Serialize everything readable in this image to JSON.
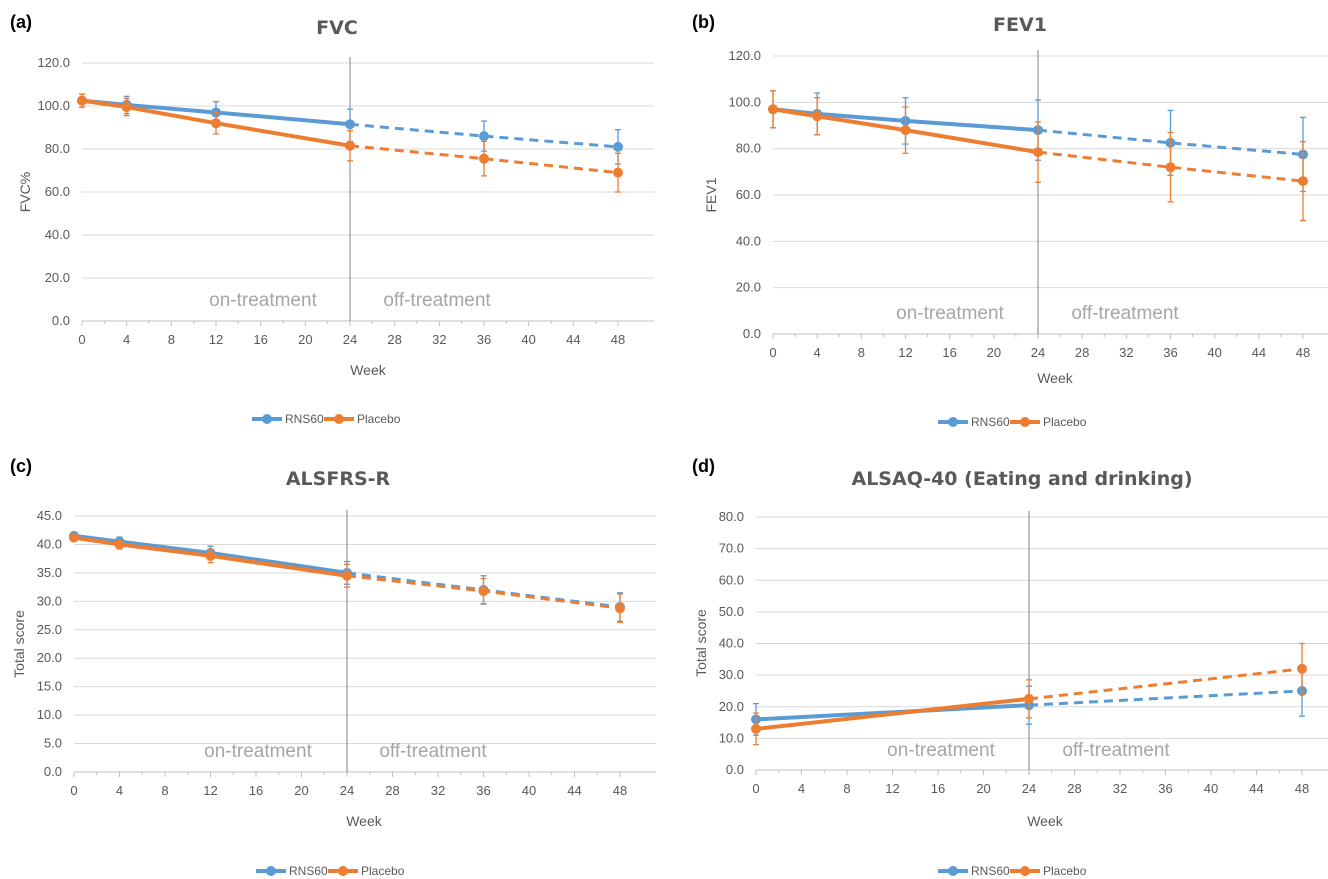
{
  "colors": {
    "rns60": "#5b9bd5",
    "placebo": "#ed7d31",
    "grid": "#d9d9d9",
    "axis": "#bfbfbf",
    "divider": "#808080",
    "text": "#595959",
    "phase_text": "#a6a6a6"
  },
  "phase_labels": {
    "on": "on-treatment",
    "off": "off-treatment"
  },
  "chart_data": [
    {
      "panel": "(a)",
      "type": "line",
      "title": "FVC",
      "xlabel": "Week",
      "ylabel": "FVC%",
      "xlim": [
        0,
        48
      ],
      "xticks": [
        "0",
        "4",
        "8",
        "12",
        "16",
        "20",
        "24",
        "28",
        "32",
        "36",
        "40",
        "44",
        "48"
      ],
      "ylim": [
        0,
        120
      ],
      "yticks": [
        "0.0",
        "20.0",
        "40.0",
        "60.0",
        "80.0",
        "100.0",
        "120.0"
      ],
      "grid": true,
      "divider_x": 24,
      "legend": "bottom-center",
      "series": [
        {
          "name": "RNS60",
          "x": [
            0,
            4,
            12,
            24,
            36,
            48
          ],
          "y": [
            102.5,
            100.5,
            97,
            91.5,
            86,
            81
          ],
          "err_low": [
            3,
            4,
            5,
            8,
            7,
            8
          ],
          "err_high": [
            3,
            4,
            5,
            7,
            7,
            8
          ]
        },
        {
          "name": "Placebo",
          "x": [
            0,
            4,
            12,
            24,
            36,
            48
          ],
          "y": [
            102.5,
            99.5,
            92,
            81.5,
            75.5,
            69
          ],
          "err_low": [
            3,
            4,
            5,
            7,
            8,
            9
          ],
          "err_high": [
            3,
            4,
            5,
            7,
            8,
            9
          ]
        }
      ]
    },
    {
      "panel": "(b)",
      "type": "line",
      "title": "FEV1",
      "xlabel": "Week",
      "ylabel": "FEV1",
      "xlim": [
        0,
        48
      ],
      "xticks": [
        "0",
        "4",
        "8",
        "12",
        "16",
        "20",
        "24",
        "28",
        "32",
        "36",
        "40",
        "44",
        "48"
      ],
      "ylim": [
        0,
        120
      ],
      "yticks": [
        "0.0",
        "20.0",
        "40.0",
        "60.0",
        "80.0",
        "100.0",
        "120.0"
      ],
      "grid": true,
      "divider_x": 24,
      "legend": "bottom-center",
      "series": [
        {
          "name": "RNS60",
          "x": [
            0,
            4,
            12,
            24,
            36,
            48
          ],
          "y": [
            97,
            95,
            92,
            88,
            82.5,
            77.5
          ],
          "err_low": [
            8,
            9,
            10,
            13,
            14,
            16
          ],
          "err_high": [
            8,
            9,
            10,
            13,
            14,
            16
          ]
        },
        {
          "name": "Placebo",
          "x": [
            0,
            4,
            12,
            24,
            36,
            48
          ],
          "y": [
            97,
            94,
            88,
            78.5,
            72,
            66
          ],
          "err_low": [
            8,
            8,
            10,
            13,
            15,
            17
          ],
          "err_high": [
            8,
            8,
            10,
            13,
            15,
            17
          ]
        }
      ]
    },
    {
      "panel": "(c)",
      "type": "line",
      "title": "ALSFRS-R",
      "xlabel": "Week",
      "ylabel": "Total score",
      "xlim": [
        0,
        48
      ],
      "xticks": [
        "0",
        "4",
        "8",
        "12",
        "16",
        "20",
        "24",
        "28",
        "32",
        "36",
        "40",
        "44",
        "48"
      ],
      "ylim": [
        0,
        45
      ],
      "yticks": [
        "0.0",
        "5.0",
        "10.0",
        "15.0",
        "20.0",
        "25.0",
        "30.0",
        "35.0",
        "40.0",
        "45.0"
      ],
      "grid": true,
      "divider_x": 24,
      "legend": "bottom-center",
      "series": [
        {
          "name": "RNS60",
          "x": [
            0,
            4,
            12,
            24,
            36,
            48
          ],
          "y": [
            41.5,
            40.5,
            38.5,
            35,
            32,
            29
          ],
          "err_low": [
            0.5,
            0.8,
            1.2,
            2,
            2.5,
            2.5
          ],
          "err_high": [
            0.5,
            0.8,
            1.2,
            2,
            2.5,
            2.5
          ]
        },
        {
          "name": "Placebo",
          "x": [
            0,
            4,
            12,
            24,
            36,
            48
          ],
          "y": [
            41.2,
            40,
            38,
            34.5,
            31.8,
            28.8
          ],
          "err_low": [
            0.5,
            0.8,
            1.2,
            2,
            2.2,
            2.5
          ],
          "err_high": [
            0.5,
            0.8,
            1.2,
            2,
            2.2,
            2.5
          ]
        }
      ]
    },
    {
      "panel": "(d)",
      "type": "line",
      "title": "ALSAQ-40 (Eating and drinking)",
      "xlabel": "Week",
      "ylabel": "Total score",
      "xlim": [
        0,
        48
      ],
      "xticks": [
        "0",
        "4",
        "8",
        "12",
        "16",
        "20",
        "24",
        "28",
        "32",
        "36",
        "40",
        "44",
        "48"
      ],
      "ylim": [
        0,
        80
      ],
      "yticks": [
        "0.0",
        "10.0",
        "20.0",
        "30.0",
        "40.0",
        "50.0",
        "60.0",
        "70.0",
        "80.0"
      ],
      "grid": true,
      "divider_x": 24,
      "legend": "bottom-center",
      "series": [
        {
          "name": "RNS60",
          "x": [
            0,
            24,
            48
          ],
          "y": [
            16,
            20.5,
            25
          ],
          "err_low": [
            5,
            6,
            8
          ],
          "err_high": [
            5,
            6,
            8
          ]
        },
        {
          "name": "Placebo",
          "x": [
            0,
            24,
            48
          ],
          "y": [
            13,
            22.5,
            32
          ],
          "err_low": [
            5,
            6,
            8
          ],
          "err_high": [
            5,
            6,
            8
          ]
        }
      ]
    }
  ]
}
